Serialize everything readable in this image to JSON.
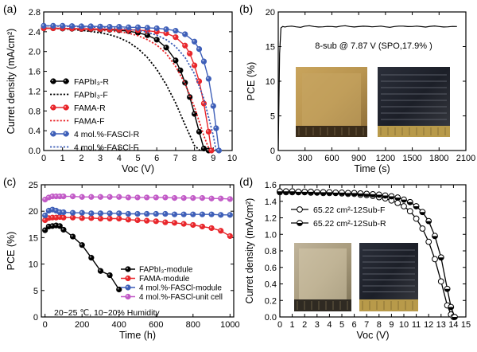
{
  "chart_data": [
    {
      "panel": "(a)",
      "type": "line",
      "xlabel": "Voc (V)",
      "ylabel": "Curret density (mA/cm²)",
      "xlim": [
        0,
        10
      ],
      "ylim": [
        0,
        2.8
      ],
      "xticks": [
        "0",
        "1",
        "2",
        "3",
        "4",
        "5",
        "6",
        "7",
        "8",
        "9",
        "10"
      ],
      "yticks": [
        "0.0",
        "0.4",
        "0.8",
        "1.2",
        "1.6",
        "2.0",
        "2.4",
        "2.8"
      ],
      "series": [
        {
          "name": "FAPbI₃-R",
          "color": "#000000",
          "style": "solid-markers",
          "markers": true,
          "x": [
            0,
            0.5,
            1,
            1.5,
            2,
            2.5,
            3,
            3.5,
            4,
            4.5,
            5,
            5.5,
            6,
            6.5,
            7,
            7.25,
            7.5,
            7.75,
            8,
            8.25,
            8.5,
            8.75
          ],
          "y": [
            2.47,
            2.47,
            2.465,
            2.46,
            2.455,
            2.45,
            2.445,
            2.44,
            2.43,
            2.41,
            2.38,
            2.33,
            2.24,
            2.08,
            1.82,
            1.62,
            1.37,
            1.08,
            0.74,
            0.38,
            0.04,
            0.0
          ]
        },
        {
          "name": "FAPbI₃-F",
          "color": "#000000",
          "style": "dotted",
          "markers": false,
          "x": [
            0,
            1,
            2,
            3,
            3.5,
            4,
            4.5,
            5,
            5.5,
            6,
            6.5,
            7,
            7.5,
            8,
            8.3
          ],
          "y": [
            2.47,
            2.46,
            2.43,
            2.38,
            2.34,
            2.28,
            2.19,
            2.06,
            1.88,
            1.64,
            1.33,
            0.96,
            0.52,
            0.1,
            0.0
          ]
        },
        {
          "name": "FAMA-R",
          "color": "#e8262b",
          "style": "solid-markers",
          "markers": true,
          "x": [
            0,
            0.5,
            1,
            1.5,
            2,
            2.5,
            3,
            3.5,
            4,
            4.5,
            5,
            5.5,
            6,
            6.5,
            7,
            7.5,
            7.75,
            8,
            8.25,
            8.5,
            8.75,
            8.9
          ],
          "y": [
            2.47,
            2.47,
            2.47,
            2.465,
            2.46,
            2.46,
            2.455,
            2.45,
            2.445,
            2.44,
            2.43,
            2.42,
            2.4,
            2.37,
            2.29,
            2.12,
            1.96,
            1.72,
            1.4,
            0.95,
            0.38,
            0.0
          ]
        },
        {
          "name": "FAMA-F",
          "color": "#e8262b",
          "style": "dotted",
          "markers": false,
          "x": [
            0,
            1,
            2,
            3,
            4,
            4.5,
            5,
            5.5,
            6,
            6.5,
            7,
            7.5,
            8,
            8.5,
            8.8
          ],
          "y": [
            2.47,
            2.46,
            2.45,
            2.43,
            2.4,
            2.37,
            2.32,
            2.24,
            2.13,
            1.96,
            1.7,
            1.35,
            0.88,
            0.3,
            0.0
          ]
        },
        {
          "name": "4 mol.%-FASCl-R",
          "color": "#3e5fb8",
          "style": "solid-markers",
          "markers": true,
          "x": [
            0,
            0.5,
            1,
            1.5,
            2,
            2.5,
            3,
            3.5,
            4,
            4.5,
            5,
            5.5,
            6,
            6.5,
            7,
            7.5,
            8,
            8.25,
            8.5,
            8.75,
            9,
            9.15,
            9.3
          ],
          "y": [
            2.52,
            2.52,
            2.52,
            2.515,
            2.51,
            2.51,
            2.505,
            2.5,
            2.5,
            2.49,
            2.49,
            2.48,
            2.47,
            2.45,
            2.42,
            2.35,
            2.2,
            2.05,
            1.8,
            1.45,
            0.9,
            0.45,
            0.0
          ]
        },
        {
          "name": "4 mol.%-FASCl-F",
          "color": "#3e5fb8",
          "style": "dotted",
          "markers": false,
          "x": [
            0,
            1,
            2,
            3,
            4,
            5,
            5.5,
            6,
            6.5,
            7,
            7.5,
            8,
            8.5,
            9,
            9.15
          ],
          "y": [
            2.52,
            2.51,
            2.5,
            2.49,
            2.47,
            2.43,
            2.39,
            2.33,
            2.24,
            2.1,
            1.88,
            1.55,
            1.05,
            0.3,
            0.0
          ]
        }
      ]
    },
    {
      "panel": "(b)",
      "type": "line",
      "xlabel": "Time (s)",
      "ylabel": "PCE (%)",
      "xlim": [
        0,
        2100
      ],
      "ylim": [
        0,
        20
      ],
      "xticks": [
        "0",
        "300",
        "600",
        "900",
        "1200",
        "1500",
        "1800",
        "2100"
      ],
      "yticks": [
        "0",
        "5",
        "10",
        "15",
        "20"
      ],
      "annotation": "8-sub @ 7.87 V (SPO,17.9% )",
      "series": [
        {
          "name": "SPO",
          "color": "#000000",
          "x": [
            0,
            15,
            30,
            50,
            100,
            200,
            300,
            400,
            500,
            600,
            700,
            800,
            900,
            1000,
            1100,
            1200,
            1300,
            1400,
            1500,
            1600,
            1700,
            1800,
            1900,
            2000
          ],
          "y": [
            0,
            14,
            17.7,
            17.9,
            17.9,
            17.85,
            17.95,
            17.9,
            17.85,
            17.9,
            17.95,
            17.9,
            17.88,
            17.92,
            17.9,
            17.85,
            17.9,
            17.95,
            17.9,
            17.88,
            17.92,
            17.9,
            17.85,
            17.9
          ]
        }
      ]
    },
    {
      "panel": "(c)",
      "type": "line",
      "xlabel": "Time (h)",
      "ylabel": "PCE (%)",
      "xlim": [
        -20,
        1020
      ],
      "ylim": [
        0,
        25
      ],
      "xticks": [
        "0",
        "200",
        "400",
        "600",
        "800",
        "1000"
      ],
      "yticks": [
        "0",
        "5",
        "10",
        "15",
        "20",
        "25"
      ],
      "annotation": "20~25 ℃, 10~20% Humidity",
      "series": [
        {
          "name": "FAPbI₃-module",
          "color": "#000000",
          "x": [
            0,
            20,
            40,
            60,
            80,
            100,
            150,
            200,
            250,
            300,
            350,
            400
          ],
          "y": [
            16.4,
            17.1,
            17.2,
            17.3,
            17.2,
            16.5,
            15.2,
            13.6,
            11.2,
            8.7,
            7.9,
            5.2
          ]
        },
        {
          "name": "FAMA-module",
          "color": "#e8262b",
          "x": [
            0,
            20,
            40,
            60,
            80,
            100,
            150,
            200,
            250,
            300,
            350,
            400,
            450,
            500,
            550,
            600,
            650,
            700,
            750,
            800,
            850,
            900,
            950,
            1000
          ],
          "y": [
            18.3,
            18.7,
            18.8,
            18.8,
            18.9,
            18.8,
            18.8,
            18.7,
            18.7,
            18.6,
            18.6,
            18.6,
            18.4,
            18.3,
            18.2,
            18.1,
            17.9,
            17.8,
            17.6,
            17.4,
            17.1,
            16.8,
            16.3,
            15.3
          ]
        },
        {
          "name": "4 mol.%-FASCl-module",
          "color": "#3e5fb8",
          "x": [
            0,
            20,
            40,
            60,
            80,
            100,
            150,
            200,
            250,
            300,
            350,
            400,
            450,
            500,
            550,
            600,
            650,
            700,
            750,
            800,
            850,
            900,
            950,
            1000
          ],
          "y": [
            19.2,
            20.1,
            20.3,
            20.1,
            19.8,
            19.8,
            19.7,
            19.7,
            19.6,
            19.6,
            19.6,
            19.6,
            19.5,
            19.5,
            19.5,
            19.5,
            19.5,
            19.4,
            19.4,
            19.4,
            19.4,
            19.4,
            19.3,
            19.3
          ]
        },
        {
          "name": "4 mol.%-FASCl-unit cell",
          "color": "#c25bc7",
          "x": [
            0,
            20,
            40,
            60,
            80,
            100,
            150,
            200,
            250,
            300,
            350,
            400,
            450,
            500,
            550,
            600,
            650,
            700,
            750,
            800,
            850,
            900,
            950,
            1000
          ],
          "y": [
            22.2,
            22.6,
            22.8,
            22.8,
            22.8,
            22.8,
            22.8,
            22.7,
            22.7,
            22.7,
            22.7,
            22.7,
            22.6,
            22.6,
            22.6,
            22.6,
            22.6,
            22.5,
            22.5,
            22.5,
            22.5,
            22.4,
            22.4,
            22.3
          ]
        }
      ]
    },
    {
      "panel": "(d)",
      "type": "line",
      "xlabel": "Voc (V)",
      "ylabel": "Curret density (mA/cm²)",
      "xlim": [
        0,
        15
      ],
      "ylim": [
        0,
        1.6
      ],
      "xticks": [
        "0",
        "1",
        "2",
        "3",
        "4",
        "5",
        "6",
        "7",
        "8",
        "9",
        "10",
        "11",
        "12",
        "13",
        "14",
        "15"
      ],
      "yticks": [
        "0.0",
        "0.2",
        "0.4",
        "0.6",
        "0.8",
        "1.0",
        "1.2",
        "1.4",
        "1.6"
      ],
      "series": [
        {
          "name": "65.22 cm²-12Sub-F",
          "color": "#000000",
          "fill": "open",
          "x": [
            0,
            0.5,
            1,
            1.5,
            2,
            2.5,
            3,
            3.5,
            4,
            4.5,
            5,
            5.5,
            6,
            6.5,
            7,
            7.5,
            8,
            8.5,
            9,
            9.5,
            10,
            10.5,
            11,
            11.5,
            12,
            12.5,
            13,
            13.5,
            13.8,
            14.0
          ],
          "y": [
            1.51,
            1.51,
            1.51,
            1.51,
            1.51,
            1.505,
            1.505,
            1.5,
            1.5,
            1.5,
            1.495,
            1.49,
            1.49,
            1.48,
            1.475,
            1.465,
            1.45,
            1.435,
            1.41,
            1.38,
            1.34,
            1.28,
            1.19,
            1.07,
            0.91,
            0.7,
            0.43,
            0.14,
            0.03,
            0.0
          ]
        },
        {
          "name": "65.22 cm²-12Sub-R",
          "color": "#000000",
          "fill": "half",
          "x": [
            0,
            0.5,
            1,
            1.5,
            2,
            2.5,
            3,
            3.5,
            4,
            4.5,
            5,
            5.5,
            6,
            6.5,
            7,
            7.5,
            8,
            8.5,
            9,
            9.5,
            10,
            10.5,
            11,
            11.5,
            12,
            12.5,
            13,
            13.5,
            13.8,
            14.1
          ],
          "y": [
            1.52,
            1.52,
            1.52,
            1.515,
            1.515,
            1.515,
            1.51,
            1.51,
            1.51,
            1.505,
            1.505,
            1.5,
            1.5,
            1.495,
            1.49,
            1.485,
            1.48,
            1.47,
            1.46,
            1.445,
            1.42,
            1.39,
            1.34,
            1.27,
            1.16,
            0.98,
            0.72,
            0.34,
            0.12,
            0.0
          ]
        }
      ]
    }
  ]
}
